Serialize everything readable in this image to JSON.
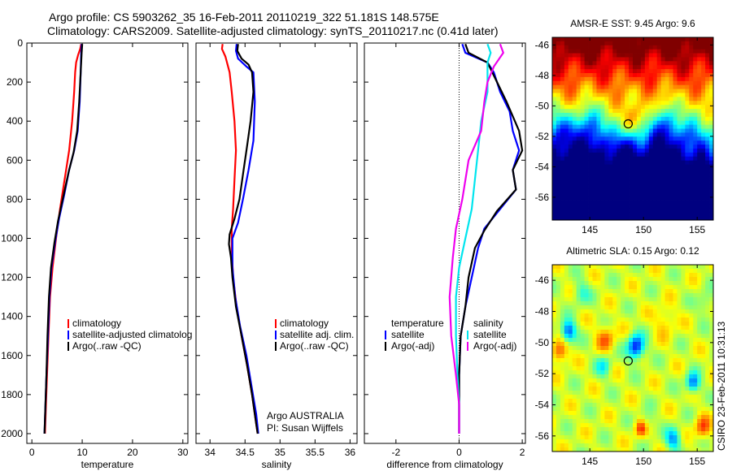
{
  "title_line1": "Argo profile: CS 5903262_35 16-Feb-2011 20110219_322 51.181S 148.575E",
  "title_line2": "Climatology: CARS2009. Satellite-adjusted climatology: synTS_20110217.nc (0.41d later)",
  "credit": "CSIRO 23-Feb-2011 10:31:13",
  "colors": {
    "red": "#ff0000",
    "blue": "#0000ff",
    "black": "#000000",
    "cyan": "#00e5ee",
    "magenta": "#ee00ee"
  },
  "chart_data": [
    {
      "type": "line",
      "xlabel": "temperature",
      "ylabel": "",
      "xlim": [
        -1,
        31
      ],
      "ylim": [
        2050,
        0
      ],
      "xticks": [
        0,
        10,
        20,
        30
      ],
      "yticks": [
        0,
        200,
        400,
        600,
        800,
        1000,
        1200,
        1400,
        1600,
        1800,
        2000
      ],
      "legend": [
        "climatology",
        "satellite-adjusted climatolog",
        "Argo(..raw -QC)"
      ],
      "series": [
        {
          "name": "climatology",
          "color": "#ff0000",
          "points": [
            [
              9.8,
              5
            ],
            [
              9.6,
              30
            ],
            [
              9.2,
              60
            ],
            [
              8.8,
              100
            ],
            [
              8.6,
              150
            ],
            [
              8.4,
              250
            ],
            [
              8.0,
              400
            ],
            [
              7.4,
              550
            ],
            [
              6.5,
              700
            ],
            [
              5.6,
              850
            ],
            [
              4.8,
              1000
            ],
            [
              4.1,
              1150
            ],
            [
              3.6,
              1300
            ],
            [
              3.3,
              1500
            ],
            [
              3.0,
              1700
            ],
            [
              2.8,
              1850
            ],
            [
              2.6,
              2000
            ]
          ]
        },
        {
          "name": "satellite-adjusted climatolog",
          "color": "#0000ff",
          "points": [
            [
              9.9,
              5
            ],
            [
              9.8,
              50
            ],
            [
              9.7,
              150
            ],
            [
              9.5,
              300
            ],
            [
              9.1,
              450
            ],
            [
              8.4,
              550
            ],
            [
              7.4,
              650
            ],
            [
              6.4,
              780
            ],
            [
              5.4,
              900
            ],
            [
              4.6,
              1020
            ],
            [
              3.9,
              1150
            ],
            [
              3.5,
              1300
            ],
            [
              3.2,
              1500
            ],
            [
              2.9,
              1700
            ],
            [
              2.7,
              1850
            ],
            [
              2.5,
              2000
            ]
          ]
        },
        {
          "name": "Argo(..raw -QC)",
          "color": "#000000",
          "points": [
            [
              10.0,
              5
            ],
            [
              9.9,
              50
            ],
            [
              9.7,
              150
            ],
            [
              9.4,
              300
            ],
            [
              9.0,
              450
            ],
            [
              8.3,
              560
            ],
            [
              7.3,
              660
            ],
            [
              6.2,
              790
            ],
            [
              5.2,
              910
            ],
            [
              4.5,
              1020
            ],
            [
              3.8,
              1150
            ],
            [
              3.4,
              1300
            ],
            [
              3.1,
              1500
            ],
            [
              2.9,
              1700
            ],
            [
              2.7,
              1850
            ],
            [
              2.5,
              2000
            ]
          ]
        }
      ]
    },
    {
      "type": "line",
      "xlabel": "salinity",
      "ylabel": "",
      "xlim": [
        33.8,
        36.1
      ],
      "ylim": [
        2050,
        0
      ],
      "xticks": [
        34,
        34.5,
        35,
        35.5,
        36
      ],
      "xtick_labels": [
        "34",
        "34.5",
        "35",
        "35.5",
        "36"
      ],
      "legend": [
        "climatology",
        "satellite adj. clim.",
        "Argo(..raw -QC)"
      ],
      "annotation": [
        "Argo AUSTRALIA",
        "PI: Susan Wijffels"
      ],
      "series": [
        {
          "name": "climatology",
          "color": "#ff0000",
          "points": [
            [
              34.18,
              5
            ],
            [
              34.17,
              30
            ],
            [
              34.22,
              70
            ],
            [
              34.28,
              150
            ],
            [
              34.31,
              250
            ],
            [
              34.35,
              400
            ],
            [
              34.37,
              550
            ],
            [
              34.35,
              700
            ],
            [
              34.33,
              850
            ],
            [
              34.31,
              950
            ],
            [
              34.31,
              1050
            ],
            [
              34.33,
              1200
            ],
            [
              34.38,
              1350
            ],
            [
              34.45,
              1500
            ],
            [
              34.53,
              1650
            ],
            [
              34.6,
              1800
            ],
            [
              34.66,
              1950
            ],
            [
              34.68,
              2000
            ]
          ]
        },
        {
          "name": "satellite adj. clim.",
          "color": "#0000ff",
          "points": [
            [
              34.38,
              5
            ],
            [
              34.37,
              40
            ],
            [
              34.4,
              80
            ],
            [
              34.52,
              120
            ],
            [
              34.62,
              150
            ],
            [
              34.64,
              300
            ],
            [
              34.62,
              500
            ],
            [
              34.55,
              650
            ],
            [
              34.47,
              800
            ],
            [
              34.4,
              920
            ],
            [
              34.32,
              1000
            ],
            [
              34.32,
              1150
            ],
            [
              34.36,
              1300
            ],
            [
              34.43,
              1450
            ],
            [
              34.52,
              1600
            ],
            [
              34.59,
              1750
            ],
            [
              34.66,
              1900
            ],
            [
              34.69,
              2000
            ]
          ]
        },
        {
          "name": "Argo(..raw -QC)",
          "color": "#000000",
          "points": [
            [
              34.4,
              5
            ],
            [
              34.39,
              40
            ],
            [
              34.45,
              80
            ],
            [
              34.55,
              110
            ],
            [
              34.6,
              150
            ],
            [
              34.62,
              250
            ],
            [
              34.58,
              400
            ],
            [
              34.52,
              550
            ],
            [
              34.48,
              650
            ],
            [
              34.42,
              800
            ],
            [
              34.35,
              900
            ],
            [
              34.28,
              980
            ],
            [
              34.27,
              1030
            ],
            [
              34.3,
              1100
            ],
            [
              34.32,
              1200
            ],
            [
              34.37,
              1350
            ],
            [
              34.45,
              1500
            ],
            [
              34.53,
              1650
            ],
            [
              34.6,
              1800
            ],
            [
              34.66,
              1950
            ],
            [
              34.68,
              2000
            ]
          ]
        }
      ]
    },
    {
      "type": "line",
      "xlabel": "difference from climatology",
      "ylabel": "",
      "xlim": [
        -3,
        2.1
      ],
      "ylim": [
        2050,
        0
      ],
      "xticks": [
        -2,
        0,
        2
      ],
      "xtick_labels": [
        "-2",
        "0",
        "2"
      ],
      "zero_line": true,
      "legend_groups": [
        {
          "heading": "temperature",
          "entries": [
            "satellite",
            "Argo(-adj)"
          ]
        },
        {
          "heading": "salinity",
          "entries": [
            "satellite",
            "Argo(-adj)"
          ]
        }
      ],
      "series": [
        {
          "name": "temperature satellite",
          "color": "#0000ff",
          "points": [
            [
              0.1,
              5
            ],
            [
              0.2,
              50
            ],
            [
              0.9,
              100
            ],
            [
              1.1,
              150
            ],
            [
              1.3,
              250
            ],
            [
              1.6,
              350
            ],
            [
              1.7,
              450
            ],
            [
              1.9,
              550
            ],
            [
              1.7,
              650
            ],
            [
              1.8,
              750
            ],
            [
              1.3,
              850
            ],
            [
              0.8,
              950
            ],
            [
              0.6,
              1050
            ],
            [
              0.4,
              1200
            ],
            [
              0.2,
              1350
            ],
            [
              0.05,
              1500
            ],
            [
              0.0,
              1700
            ],
            [
              0.0,
              2000
            ]
          ]
        },
        {
          "name": "temperature Argo(-adj)",
          "color": "#000000",
          "points": [
            [
              0.2,
              5
            ],
            [
              0.3,
              50
            ],
            [
              0.9,
              100
            ],
            [
              1.2,
              200
            ],
            [
              1.5,
              300
            ],
            [
              1.9,
              450
            ],
            [
              2.0,
              550
            ],
            [
              1.7,
              650
            ],
            [
              1.8,
              750
            ],
            [
              1.2,
              860
            ],
            [
              0.8,
              960
            ],
            [
              0.5,
              1050
            ],
            [
              0.3,
              1200
            ],
            [
              0.2,
              1350
            ],
            [
              0.05,
              1500
            ],
            [
              0.0,
              1700
            ],
            [
              0.0,
              2000
            ]
          ]
        },
        {
          "name": "salinity satellite",
          "color": "#00e5ee",
          "points": [
            [
              0.9,
              5
            ],
            [
              1.0,
              50
            ],
            [
              0.9,
              100
            ],
            [
              0.9,
              250
            ],
            [
              0.7,
              400
            ],
            [
              0.6,
              550
            ],
            [
              0.5,
              700
            ],
            [
              0.4,
              850
            ],
            [
              0.2,
              1000
            ],
            [
              0.0,
              1150
            ],
            [
              -0.1,
              1300
            ],
            [
              -0.1,
              1500
            ],
            [
              -0.05,
              1700
            ],
            [
              0.0,
              1850
            ],
            [
              0.0,
              2000
            ]
          ]
        },
        {
          "name": "salinity Argo(-adj)",
          "color": "#ee00ee",
          "points": [
            [
              1.3,
              5
            ],
            [
              1.4,
              50
            ],
            [
              1.1,
              120
            ],
            [
              0.9,
              200
            ],
            [
              0.8,
              300
            ],
            [
              0.7,
              450
            ],
            [
              0.3,
              600
            ],
            [
              0.1,
              800
            ],
            [
              -0.1,
              950
            ],
            [
              -0.2,
              1100
            ],
            [
              -0.3,
              1300
            ],
            [
              -0.25,
              1500
            ],
            [
              -0.1,
              1700
            ],
            [
              0.0,
              1850
            ],
            [
              0.0,
              2000
            ]
          ]
        }
      ]
    },
    {
      "type": "heatmap",
      "title": "AMSR-E SST: 9.45 Argo: 9.6",
      "xlim": [
        141.5,
        156.5
      ],
      "ylim": [
        -57.5,
        -45.5
      ],
      "xticks": [
        145,
        150,
        155
      ],
      "yticks": [
        -46,
        -48,
        -50,
        -52,
        -54,
        -56
      ],
      "marker": {
        "lon": 148.575,
        "lat": -51.181
      }
    },
    {
      "type": "heatmap",
      "title": "Altimetric SLA: 0.15 Argo: 0.12",
      "xlim": [
        141.5,
        156.5
      ],
      "ylim": [
        -57,
        -45
      ],
      "xticks": [
        145,
        150,
        155
      ],
      "yticks": [
        -46,
        -48,
        -50,
        -52,
        -54,
        -56
      ],
      "marker": {
        "lon": 148.575,
        "lat": -51.181
      }
    }
  ]
}
